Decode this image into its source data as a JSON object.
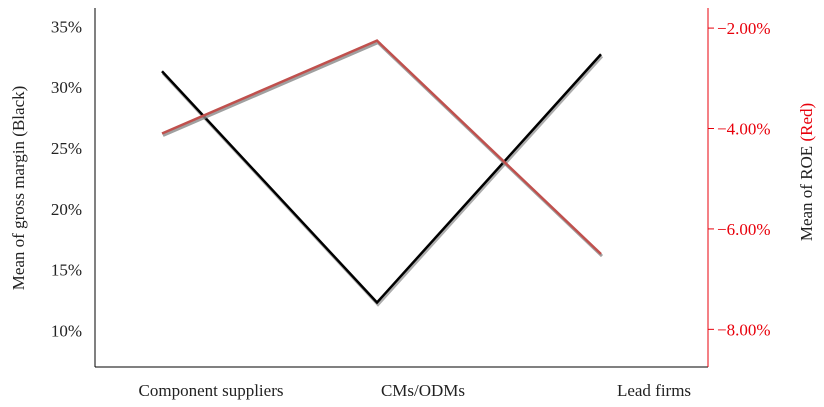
{
  "chart_data": {
    "type": "line",
    "categories": [
      "Component suppliers",
      "CMs/ODMs",
      "Lead firms"
    ],
    "series": [
      {
        "name": "Mean of gross margin",
        "axis": "left",
        "values": [
          31.3,
          12.3,
          32.7
        ],
        "color": "#000000",
        "shadow_color": "#999999"
      },
      {
        "name": "Mean of ROE",
        "axis": "right",
        "values": [
          -4.1,
          -2.25,
          -6.5
        ],
        "color": "#c0504d",
        "shadow_color": "#888888"
      }
    ],
    "y_left": {
      "ticks": [
        10,
        15,
        20,
        25,
        30,
        35
      ],
      "tick_labels": [
        "10%",
        "15%",
        "20%",
        "25%",
        "30%",
        "35%"
      ],
      "range": [
        7,
        36.5
      ],
      "label_prefix": "Mean of gross margin",
      "label_suffix": "(Black)",
      "label_color": "#222222",
      "tick_color": "#222222"
    },
    "y_right": {
      "ticks": [
        -8,
        -6,
        -4,
        -2
      ],
      "tick_labels": [
        "−8.00%",
        "−6.00%",
        "−4.00%",
        "−2.00%"
      ],
      "range": [
        -8.75,
        -1.6
      ],
      "label_prefix": "Mean of ROE",
      "label_suffix": "(Red)",
      "label_color": "#222222",
      "suffix_color": "#e8000b",
      "tick_color": "#e8000b"
    },
    "grid": false,
    "legend": "none"
  }
}
